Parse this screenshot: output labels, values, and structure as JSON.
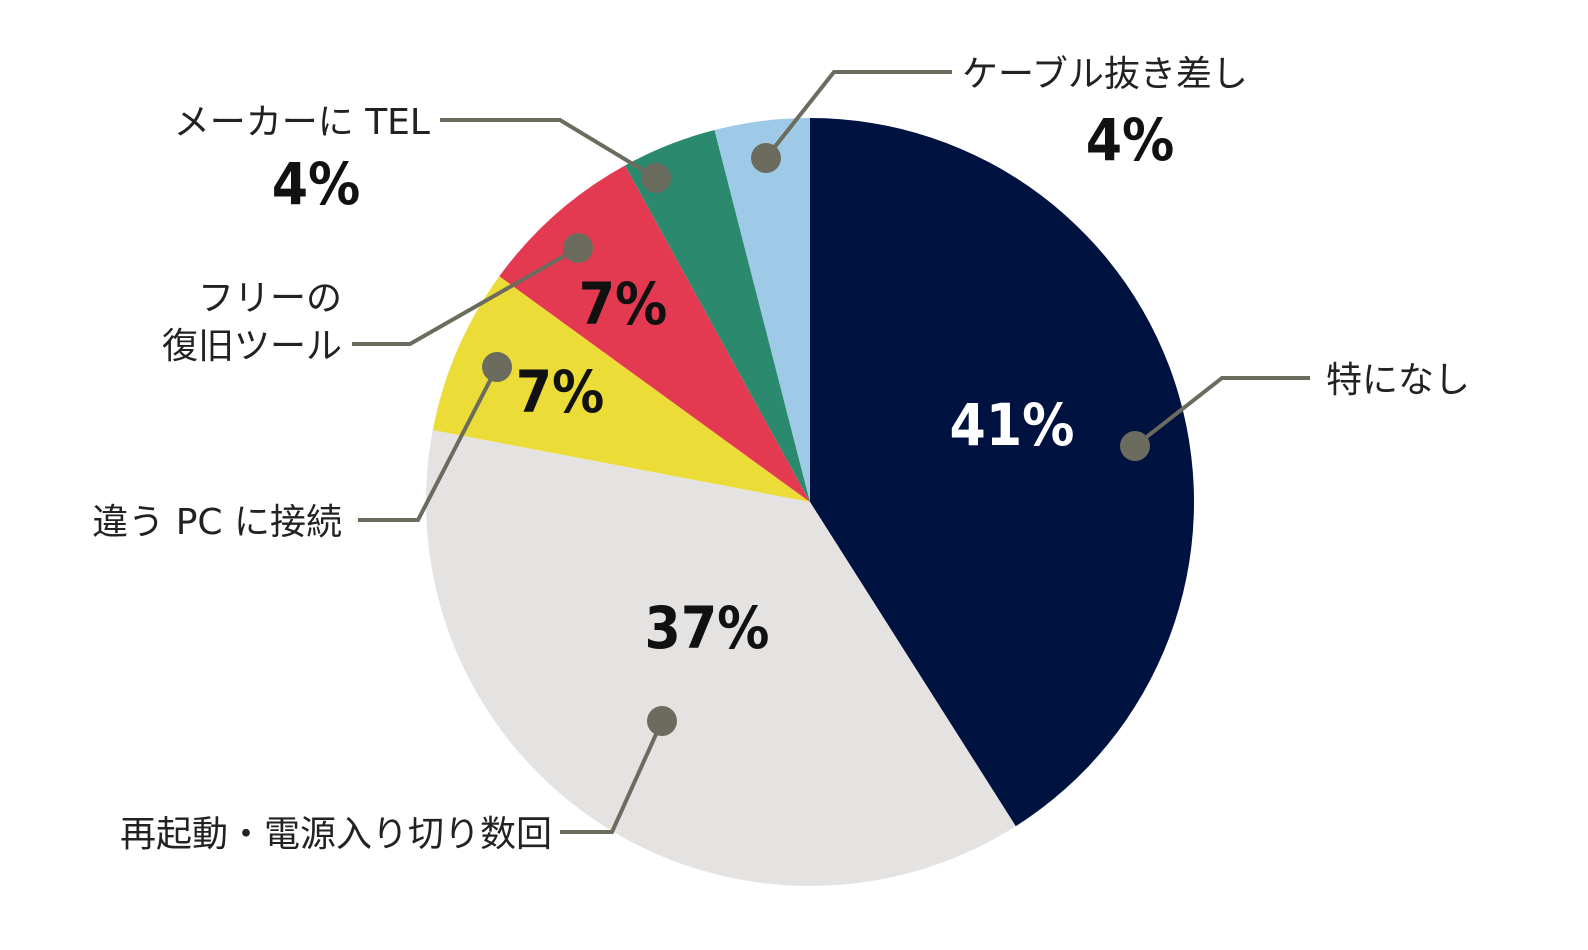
{
  "chart_data": {
    "type": "pie",
    "title": "",
    "series": [
      {
        "name": "特になし",
        "value": 41,
        "label": "41%",
        "color": "#00123f",
        "label_color": "#ffffff"
      },
      {
        "name": "再起動・電源入り切り数回",
        "value": 37,
        "label": "37%",
        "color": "#e5e3e1",
        "label_color": "#111111"
      },
      {
        "name": "違う PC に接続",
        "value": 7,
        "label": "7%",
        "color": "#ecdc37",
        "label_color": "#111111"
      },
      {
        "name": "フリーの\n復旧ツール",
        "value": 7,
        "label": "7%",
        "color": "#e33a52",
        "label_color": "#111111"
      },
      {
        "name": "メーカーに TEL",
        "value": 4,
        "label": "4%",
        "color": "#2b8a6d",
        "label_color": "#111111"
      },
      {
        "name": "ケーブル抜き差し",
        "value": 4,
        "label": "4%",
        "color": "#9ecae7",
        "label_color": "#111111"
      }
    ],
    "legend": "none (callout labels)"
  }
}
